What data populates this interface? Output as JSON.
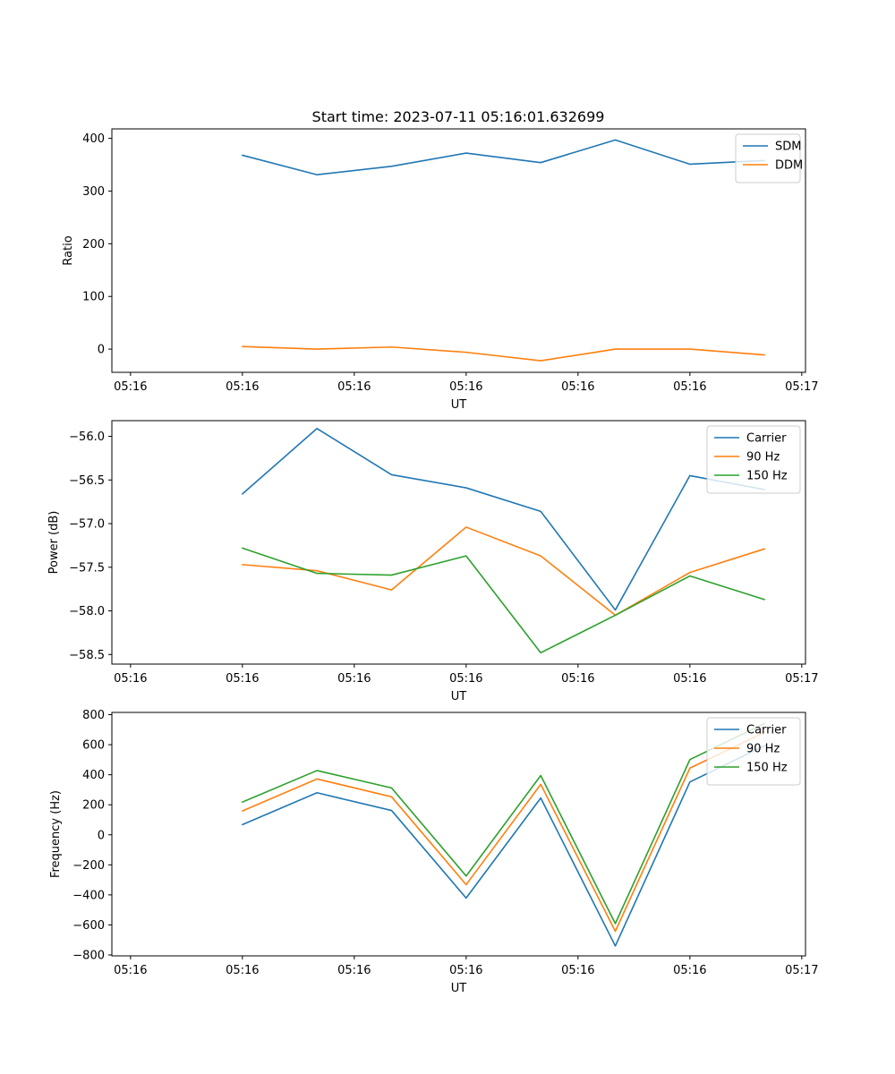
{
  "title": "Start time: 2023-07-11 05:16:01.632699",
  "colors": {
    "blue": "#1f77b4",
    "orange": "#ff7f0e",
    "green": "#2ca02c"
  },
  "chart_data": [
    {
      "type": "line",
      "xlabel": "UT",
      "ylabel": "Ratio",
      "x": [
        1,
        2,
        3,
        4,
        5,
        6,
        7,
        8
      ],
      "xlim": [
        -0.75,
        8.55
      ],
      "x_ticks": [
        -0.5,
        1.0,
        2.5,
        4.0,
        5.5,
        7.0,
        8.5
      ],
      "x_tick_labels": [
        "05:16",
        "05:16",
        "05:16",
        "05:16",
        "05:16",
        "05:16",
        "05:17"
      ],
      "ylim": [
        -44,
        418
      ],
      "y_ticks": [
        0,
        100,
        200,
        300,
        400
      ],
      "y_tick_labels": [
        "0",
        "100",
        "200",
        "300",
        "400"
      ],
      "legend_position": "top-right",
      "series": [
        {
          "name": "SDM",
          "color": "#1f77b4",
          "values": [
            368,
            331,
            347,
            372,
            354,
            397,
            351,
            358
          ]
        },
        {
          "name": "DDM",
          "color": "#ff7f0e",
          "values": [
            5,
            0,
            4,
            -6,
            -22,
            0,
            0,
            -11
          ]
        }
      ]
    },
    {
      "type": "line",
      "xlabel": "UT",
      "ylabel": "Power (dB)",
      "x": [
        1,
        2,
        3,
        4,
        5,
        6,
        7,
        8
      ],
      "xlim": [
        -0.75,
        8.55
      ],
      "x_ticks": [
        -0.5,
        1.0,
        2.5,
        4.0,
        5.5,
        7.0,
        8.5
      ],
      "x_tick_labels": [
        "05:16",
        "05:16",
        "05:16",
        "05:16",
        "05:16",
        "05:16",
        "05:17"
      ],
      "ylim": [
        -58.61,
        -55.82
      ],
      "y_ticks": [
        -56.0,
        -56.5,
        -57.0,
        -57.5,
        -58.0,
        -58.5
      ],
      "y_tick_labels": [
        "−56.0",
        "−56.5",
        "−57.0",
        "−57.5",
        "−58.0",
        "−58.5"
      ],
      "legend_position": "top-right",
      "series": [
        {
          "name": "Carrier",
          "color": "#1f77b4",
          "values": [
            -56.66,
            -55.91,
            -56.44,
            -56.59,
            -56.86,
            -57.99,
            -56.45,
            -56.61
          ]
        },
        {
          "name": "90 Hz",
          "color": "#ff7f0e",
          "values": [
            -57.47,
            -57.54,
            -57.76,
            -57.04,
            -57.37,
            -58.05,
            -57.56,
            -57.29
          ]
        },
        {
          "name": "150 Hz",
          "color": "#2ca02c",
          "values": [
            -57.28,
            -57.57,
            -57.59,
            -57.37,
            -58.48,
            -58.05,
            -57.6,
            -57.87
          ]
        }
      ]
    },
    {
      "type": "line",
      "xlabel": "UT",
      "ylabel": "Frequency (Hz)",
      "x": [
        1,
        2,
        3,
        4,
        5,
        6,
        7,
        8
      ],
      "xlim": [
        -0.75,
        8.55
      ],
      "x_ticks": [
        -0.5,
        1.0,
        2.5,
        4.0,
        5.5,
        7.0,
        8.5
      ],
      "x_tick_labels": [
        "05:16",
        "05:16",
        "05:16",
        "05:16",
        "05:16",
        "05:16",
        "05:17"
      ],
      "ylim": [
        -806,
        815
      ],
      "y_ticks": [
        800,
        600,
        400,
        200,
        0,
        -200,
        -400,
        -600,
        -800
      ],
      "y_tick_labels": [
        "800",
        "600",
        "400",
        "200",
        "0",
        "−200",
        "−400",
        "−600",
        "−800"
      ],
      "legend_position": "top-right",
      "series": [
        {
          "name": "Carrier",
          "color": "#1f77b4",
          "values": [
            68,
            280,
            162,
            -421,
            245,
            -740,
            352,
            593
          ]
        },
        {
          "name": "90 Hz",
          "color": "#ff7f0e",
          "values": [
            159,
            372,
            253,
            -332,
            336,
            -642,
            444,
            682
          ]
        },
        {
          "name": "150 Hz",
          "color": "#2ca02c",
          "values": [
            218,
            428,
            312,
            -274,
            395,
            -591,
            501,
            741
          ]
        }
      ]
    }
  ]
}
